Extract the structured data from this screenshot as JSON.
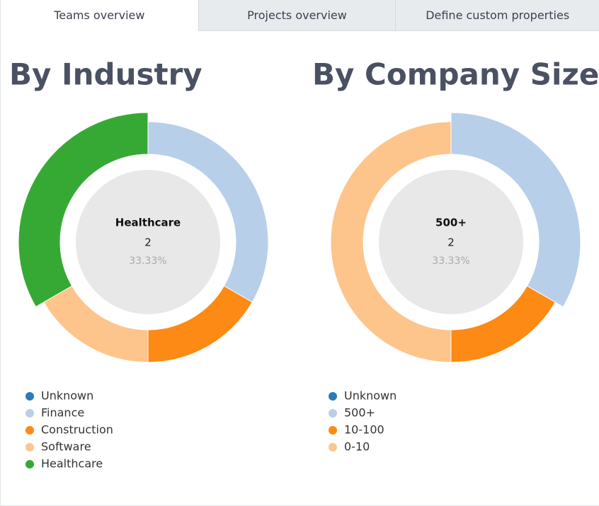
{
  "tabs": [
    "Teams overview",
    "Projects overview",
    "Define custom properties"
  ],
  "active_tab": 0,
  "chart_data": [
    {
      "type": "pie",
      "title": "By Industry",
      "categories": [
        "Unknown",
        "Finance",
        "Construction",
        "Software",
        "Healthcare"
      ],
      "values": [
        0,
        2,
        1,
        1,
        2
      ],
      "colors": [
        "#2b7bba",
        "#b8cfea",
        "#fc8a14",
        "#fdc58b",
        "#36a935"
      ],
      "highlight": 4,
      "center_percent": "33.33%"
    },
    {
      "type": "pie",
      "title": "By Company Size",
      "categories": [
        "Unknown",
        "500+",
        "10-100",
        "0-10"
      ],
      "values": [
        0,
        2,
        1,
        3
      ],
      "colors": [
        "#2b7bba",
        "#b8cfea",
        "#fc8a14",
        "#fdc58b"
      ],
      "highlight": 1,
      "center_percent": "33.33%"
    }
  ]
}
